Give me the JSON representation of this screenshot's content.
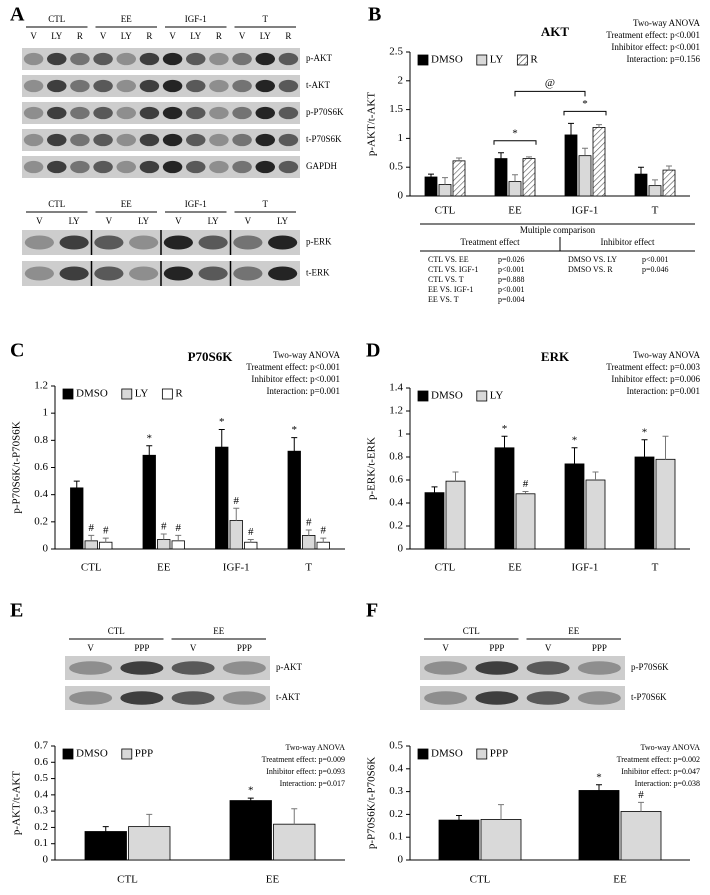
{
  "panel_a": {
    "label": "A",
    "top_blot": {
      "groups": [
        "CTL",
        "EE",
        "IGF-1",
        "T"
      ],
      "lanes": [
        "V",
        "LY",
        "R"
      ],
      "bands": [
        "p-AKT",
        "t-AKT",
        "p-P70S6K",
        "t-P70S6K",
        "GAPDH"
      ]
    },
    "bottom_blot": {
      "groups": [
        "CTL",
        "EE",
        "IGF-1",
        "T"
      ],
      "lanes": [
        "V",
        "LY"
      ],
      "bands": [
        "p-ERK",
        "t-ERK"
      ]
    }
  },
  "chart_data": [
    {
      "type": "bar",
      "panel": "B",
      "title": "AKT",
      "ylabel": "p-AKT/t-AKT",
      "categories": [
        "CTL",
        "EE",
        "IGF-1",
        "T"
      ],
      "series": [
        {
          "name": "DMSO",
          "color": "#000000",
          "values": [
            0.33,
            0.65,
            1.06,
            0.38
          ],
          "errors": [
            0.05,
            0.1,
            0.2,
            0.12
          ]
        },
        {
          "name": "LY",
          "color": "#d9d9d9",
          "values": [
            0.2,
            0.25,
            0.7,
            0.18
          ],
          "errors": [
            0.12,
            0.12,
            0.13,
            0.1
          ]
        },
        {
          "name": "R",
          "color": "#ffffff",
          "hatch": true,
          "values": [
            0.61,
            0.65,
            1.19,
            0.45
          ],
          "errors": [
            0.05,
            0.03,
            0.05,
            0.07
          ]
        }
      ],
      "group_markers": [
        null,
        "*",
        "*",
        null
      ],
      "between_marker": "@",
      "ylim": [
        0,
        2.5
      ],
      "yticks": [
        0,
        0.5,
        1,
        1.5,
        2,
        2.5
      ],
      "annotations": [
        "Two-way ANOVA",
        "Treatment effect: p<0.001",
        "Inhibitor effect: p<0.001",
        "Interaction: p=0.156"
      ],
      "comparison": {
        "title": "Multiple comparison",
        "columns": [
          {
            "header": "Treatment effect",
            "rows": [
              [
                "CTL VS. EE",
                "p=0.026"
              ],
              [
                "CTL VS. IGF-1",
                "p<0.001"
              ],
              [
                "CTL VS. T",
                "p=0.888"
              ],
              [
                "EE VS. IGF-1",
                "p<0.001"
              ],
              [
                "EE VS. T",
                "p=0.004"
              ]
            ]
          },
          {
            "header": "Inhibitor effect",
            "rows": [
              [
                "DMSO VS. LY",
                "p<0.001"
              ],
              [
                "DMSO VS. R",
                "p=0.046"
              ]
            ]
          }
        ]
      }
    },
    {
      "type": "bar",
      "panel": "C",
      "title": "P70S6K",
      "ylabel": "p-P70S6K/t-P70S6K",
      "categories": [
        "CTL",
        "EE",
        "IGF-1",
        "T"
      ],
      "series": [
        {
          "name": "DMSO",
          "color": "#000000",
          "values": [
            0.45,
            0.69,
            0.75,
            0.72
          ],
          "errors": [
            0.05,
            0.07,
            0.13,
            0.1
          ],
          "markers": [
            null,
            "*",
            "*",
            "*"
          ]
        },
        {
          "name": "LY",
          "color": "#d9d9d9",
          "values": [
            0.06,
            0.07,
            0.21,
            0.1
          ],
          "errors": [
            0.04,
            0.04,
            0.09,
            0.04
          ],
          "markers": [
            "#",
            "#",
            "#",
            "#"
          ]
        },
        {
          "name": "R",
          "color": "#ffffff",
          "values": [
            0.05,
            0.06,
            0.05,
            0.05
          ],
          "errors": [
            0.03,
            0.04,
            0.02,
            0.03
          ],
          "markers": [
            "#",
            "#",
            "#",
            "#"
          ]
        }
      ],
      "ylim": [
        0,
        1.2
      ],
      "yticks": [
        0,
        0.2,
        0.4,
        0.6,
        0.8,
        1,
        1.2
      ],
      "annotations": [
        "Two-way ANOVA",
        "Treatment effect: p<0.001",
        "Inhibitor effect: p<0.001",
        "Interaction: p=0.001"
      ]
    },
    {
      "type": "bar",
      "panel": "D",
      "title": "ERK",
      "ylabel": "p-ERK/t-ERK",
      "categories": [
        "CTL",
        "EE",
        "IGF-1",
        "T"
      ],
      "series": [
        {
          "name": "DMSO",
          "color": "#000000",
          "values": [
            0.49,
            0.88,
            0.74,
            0.8
          ],
          "errors": [
            0.05,
            0.1,
            0.14,
            0.15
          ],
          "markers": [
            null,
            "*",
            "*",
            "*"
          ]
        },
        {
          "name": "LY",
          "color": "#d9d9d9",
          "values": [
            0.59,
            0.48,
            0.6,
            0.78
          ],
          "errors": [
            0.08,
            0.02,
            0.07,
            0.2
          ],
          "markers": [
            null,
            "#",
            null,
            null
          ]
        }
      ],
      "ylim": [
        0,
        1.4
      ],
      "yticks": [
        0,
        0.2,
        0.4,
        0.6,
        0.8,
        1,
        1.2,
        1.4
      ],
      "annotations": [
        "Two-way ANOVA",
        "Treatment effect: p=0.003",
        "Inhibitor effect: p=0.006",
        "Interaction: p=0.001"
      ]
    },
    {
      "type": "bar",
      "panel": "E",
      "ylabel": "p-AKT/t-AKT",
      "blot": {
        "groups": [
          "CTL",
          "EE"
        ],
        "lanes": [
          "V",
          "PPP"
        ],
        "bands": [
          "p-AKT",
          "t-AKT"
        ]
      },
      "categories": [
        "CTL",
        "EE"
      ],
      "series": [
        {
          "name": "DMSO",
          "color": "#000000",
          "values": [
            0.175,
            0.365
          ],
          "errors": [
            0.03,
            0.015
          ],
          "markers": [
            null,
            "*"
          ]
        },
        {
          "name": "PPP",
          "color": "#d9d9d9",
          "values": [
            0.205,
            0.22
          ],
          "errors": [
            0.075,
            0.095
          ]
        }
      ],
      "ylim": [
        0,
        0.7
      ],
      "yticks": [
        0,
        0.1,
        0.2,
        0.3,
        0.4,
        0.5,
        0.6,
        0.7
      ],
      "annotations": [
        "Two-way ANOVA",
        "Treatment effect: p=0.009",
        "Inhibitor effect: p=0.093",
        "Interaction: p=0.017"
      ]
    },
    {
      "type": "bar",
      "panel": "F",
      "ylabel": "p-P70S6K/t-P70S6K",
      "blot": {
        "groups": [
          "CTL",
          "EE"
        ],
        "lanes": [
          "V",
          "PPP"
        ],
        "bands": [
          "p-P70S6K",
          "t-P70S6K"
        ]
      },
      "categories": [
        "CTL",
        "EE"
      ],
      "series": [
        {
          "name": "DMSO",
          "color": "#000000",
          "values": [
            0.175,
            0.305
          ],
          "errors": [
            0.02,
            0.025
          ],
          "markers": [
            null,
            "*"
          ]
        },
        {
          "name": "PPP",
          "color": "#d9d9d9",
          "values": [
            0.178,
            0.213
          ],
          "errors": [
            0.065,
            0.04
          ],
          "markers": [
            null,
            "#"
          ]
        }
      ],
      "ylim": [
        0,
        0.5
      ],
      "yticks": [
        0,
        0.1,
        0.2,
        0.3,
        0.4,
        0.5
      ],
      "annotations": [
        "Two-way ANOVA",
        "Treatment effect: p=0.002",
        "Inhibitor effect: p=0.047",
        "Interaction: p=0.038"
      ]
    }
  ]
}
